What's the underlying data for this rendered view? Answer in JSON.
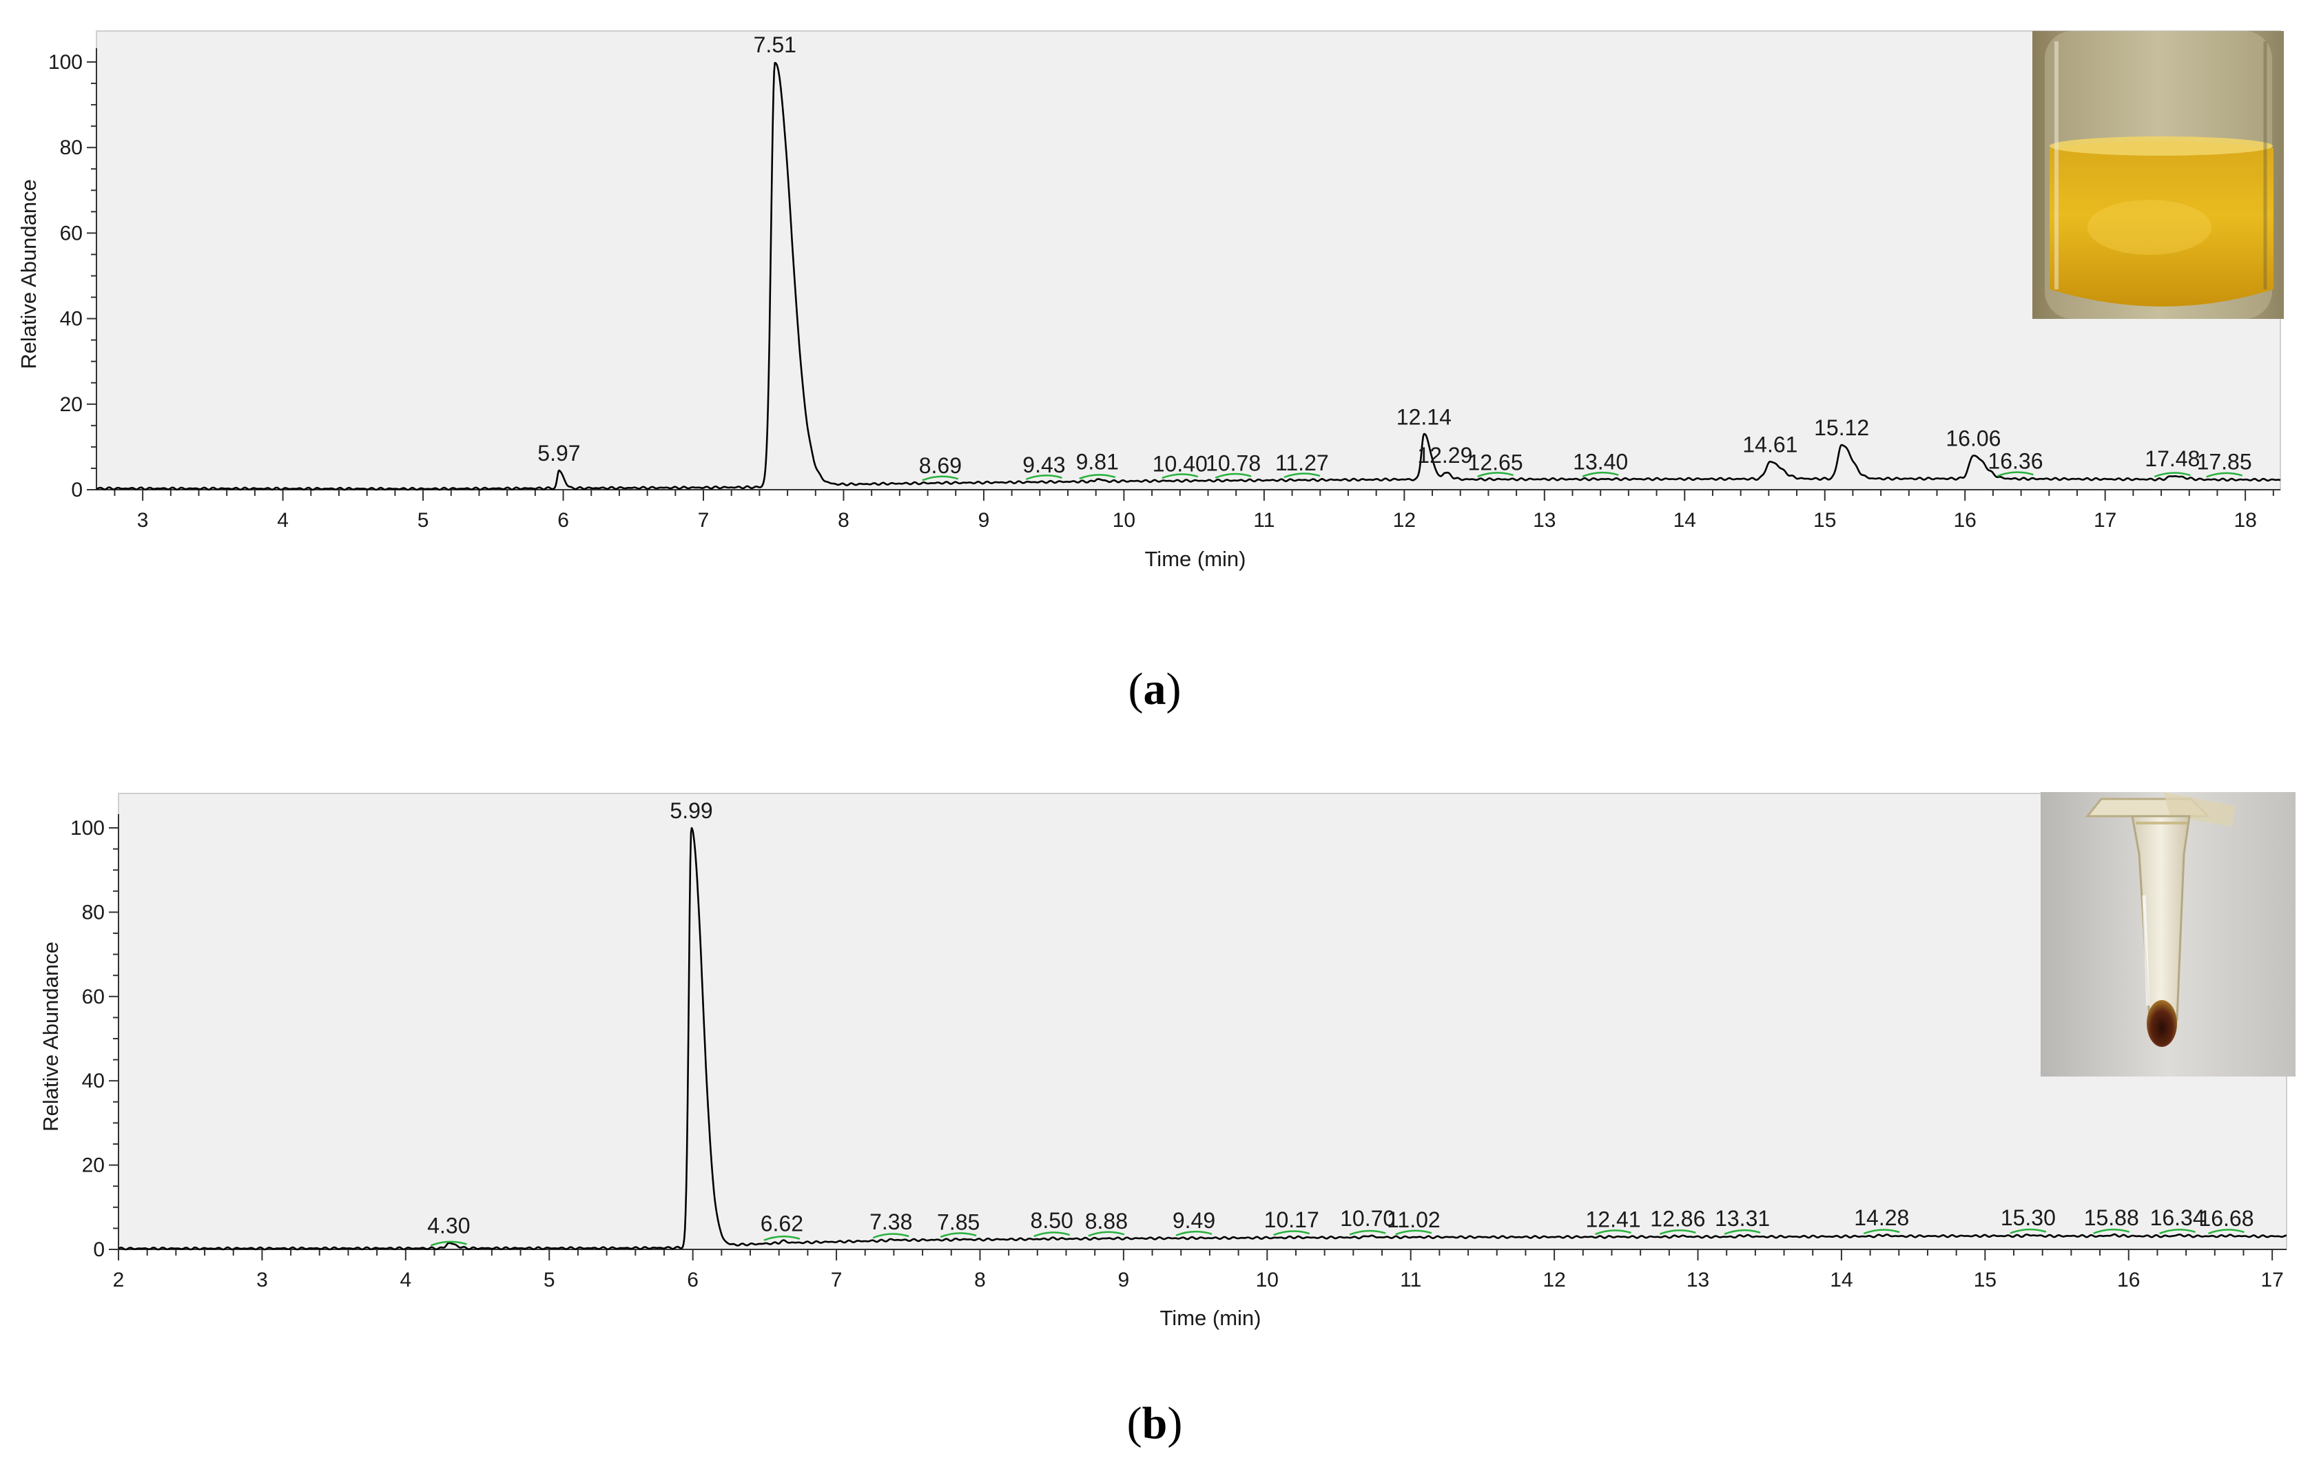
{
  "chart_data": [
    {
      "type": "line",
      "panel_label": "a",
      "xlabel": "Time (min)",
      "ylabel": "Relative Abundance",
      "xlim": [
        2.67,
        18.25
      ],
      "ylim": [
        0,
        100
      ],
      "x_ticks": [
        3,
        4,
        5,
        6,
        7,
        8,
        9,
        10,
        11,
        12,
        13,
        14,
        15,
        16,
        17,
        18
      ],
      "y_ticks": [
        0,
        20,
        40,
        60,
        80,
        100
      ],
      "baseline": [
        [
          2.67,
          0.3
        ],
        [
          5.0,
          0.2
        ],
        [
          7.0,
          0.5
        ],
        [
          7.45,
          0.6
        ],
        [
          7.9,
          1.2
        ],
        [
          8.5,
          1.5
        ],
        [
          10.0,
          2.0
        ],
        [
          12.0,
          2.4
        ],
        [
          14.0,
          2.5
        ],
        [
          16.0,
          2.6
        ],
        [
          18.25,
          2.3
        ]
      ],
      "peaks": [
        {
          "rt": 5.97,
          "label": "5.97",
          "height": 4.5,
          "width": 0.02
        },
        {
          "rt": 7.51,
          "label": "7.51",
          "height": 100,
          "width": 0.045
        },
        {
          "rt": 8.69,
          "label": "8.69",
          "height": 1.6,
          "width": 0.03
        },
        {
          "rt": 9.43,
          "label": "9.43",
          "height": 1.5,
          "width": 0.03
        },
        {
          "rt": 9.81,
          "label": "9.81",
          "height": 2.5,
          "width": 0.02
        },
        {
          "rt": 10.4,
          "label": "10.40",
          "height": 2.0,
          "width": 0.02
        },
        {
          "rt": 10.78,
          "label": "10.78",
          "height": 1.8,
          "width": 0.03
        },
        {
          "rt": 11.27,
          "label": "11.27",
          "height": 1.6,
          "width": 0.03
        },
        {
          "rt": 12.14,
          "label": "12.14",
          "height": 13,
          "width": 0.03
        },
        {
          "rt": 12.29,
          "label": "12.29",
          "height": 4.0,
          "width": 0.025
        },
        {
          "rt": 12.65,
          "label": "12.65",
          "height": 2.0,
          "width": 0.03
        },
        {
          "rt": 13.4,
          "label": "13.40",
          "height": 1.8,
          "width": 0.03
        },
        {
          "rt": 14.61,
          "label": "14.61",
          "height": 6.5,
          "width": 0.05
        },
        {
          "rt": 15.12,
          "label": "15.12",
          "height": 10.5,
          "width": 0.045
        },
        {
          "rt": 16.06,
          "label": "16.06",
          "height": 8.0,
          "width": 0.05
        },
        {
          "rt": 16.36,
          "label": "16.36",
          "height": 2.2,
          "width": 0.03
        },
        {
          "rt": 17.48,
          "label": "17.48",
          "height": 3.2,
          "width": 0.05
        },
        {
          "rt": 17.85,
          "label": "17.85",
          "height": 2.2,
          "width": 0.03
        }
      ],
      "inset_photo": "vial with yellow liquid"
    },
    {
      "type": "line",
      "panel_label": "b",
      "xlabel": "Time (min)",
      "ylabel": "Relative Abundance",
      "xlim": [
        2,
        17.1
      ],
      "ylim": [
        0,
        100
      ],
      "x_ticks": [
        2,
        3,
        4,
        5,
        6,
        7,
        8,
        9,
        10,
        11,
        12,
        13,
        14,
        15,
        16,
        17
      ],
      "y_ticks": [
        0,
        20,
        40,
        60,
        80,
        100
      ],
      "baseline": [
        [
          2,
          0.2
        ],
        [
          5.5,
          0.3
        ],
        [
          5.95,
          0.4
        ],
        [
          6.1,
          0.8
        ],
        [
          6.6,
          1.5
        ],
        [
          7.5,
          2.2
        ],
        [
          9.0,
          2.6
        ],
        [
          11.0,
          2.9
        ],
        [
          13.5,
          3.0
        ],
        [
          15.0,
          3.2
        ],
        [
          17.1,
          3.1
        ]
      ],
      "peaks": [
        {
          "rt": 4.3,
          "label": "4.30",
          "height": 1.5,
          "width": 0.03
        },
        {
          "rt": 5.99,
          "label": "5.99",
          "height": 100,
          "width": 0.03
        },
        {
          "rt": 6.62,
          "label": "6.62",
          "height": 2.0,
          "width": 0.02
        },
        {
          "rt": 7.38,
          "label": "7.38",
          "height": 2.3,
          "width": 0.03
        },
        {
          "rt": 7.85,
          "label": "7.85",
          "height": 2.4,
          "width": 0.03
        },
        {
          "rt": 8.5,
          "label": "8.50",
          "height": 2.6,
          "width": 0.03
        },
        {
          "rt": 8.88,
          "label": "8.88",
          "height": 2.6,
          "width": 0.03
        },
        {
          "rt": 9.49,
          "label": "9.49",
          "height": 2.7,
          "width": 0.03
        },
        {
          "rt": 10.17,
          "label": "10.17",
          "height": 2.9,
          "width": 0.03
        },
        {
          "rt": 10.7,
          "label": "10.70",
          "height": 3.3,
          "width": 0.02
        },
        {
          "rt": 11.02,
          "label": "11.02",
          "height": 2.9,
          "width": 0.03
        },
        {
          "rt": 12.41,
          "label": "12.41",
          "height": 3.0,
          "width": 0.03
        },
        {
          "rt": 12.86,
          "label": "12.86",
          "height": 3.2,
          "width": 0.03
        },
        {
          "rt": 13.31,
          "label": "13.31",
          "height": 3.3,
          "width": 0.03
        },
        {
          "rt": 14.28,
          "label": "14.28",
          "height": 3.4,
          "width": 0.03
        },
        {
          "rt": 15.3,
          "label": "15.30",
          "height": 3.4,
          "width": 0.03
        },
        {
          "rt": 15.88,
          "label": "15.88",
          "height": 3.4,
          "width": 0.03
        },
        {
          "rt": 16.34,
          "label": "16.34",
          "height": 3.4,
          "width": 0.03
        },
        {
          "rt": 16.68,
          "label": "16.68",
          "height": 3.3,
          "width": 0.03
        }
      ],
      "inset_photo": "microcentrifuge tube with dark residue"
    }
  ],
  "colors": {
    "plot_background": "#f0f0f0",
    "trace": "#000000",
    "peak_marker": "#27b13c"
  },
  "captions": [
    "(a)",
    "(b)"
  ]
}
